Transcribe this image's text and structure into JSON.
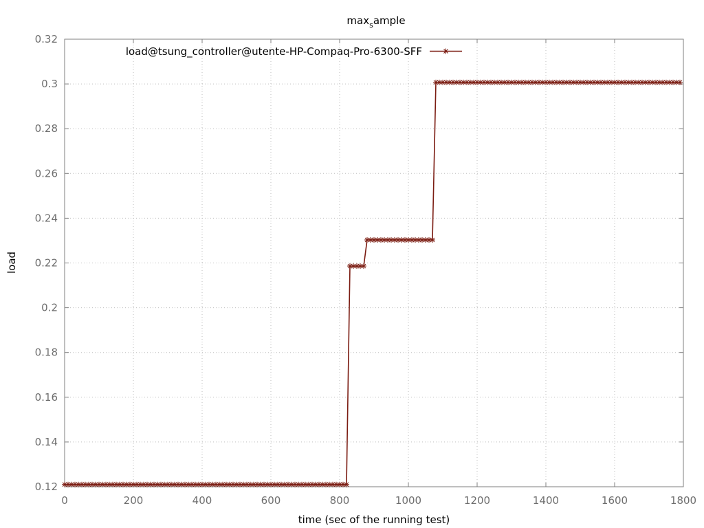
{
  "chart_data": {
    "type": "line",
    "title": "max",
    "title_subscript": "s",
    "title_rest": "ample",
    "xlabel": "time (sec of the running test)",
    "ylabel": "load",
    "xlim": [
      0,
      1800
    ],
    "ylim": [
      0.12,
      0.32
    ],
    "xticks": [
      0,
      200,
      400,
      600,
      800,
      1000,
      1200,
      1400,
      1600,
      1800
    ],
    "yticks": [
      0.12,
      0.14,
      0.16,
      0.18,
      0.2,
      0.22,
      0.24,
      0.26,
      0.28,
      0.3,
      0.32
    ],
    "ytick_labels": [
      "0.12",
      "0.14",
      "0.16",
      "0.18",
      "0.2",
      "0.22",
      "0.24",
      "0.26",
      "0.28",
      "0.3",
      "0.32"
    ],
    "grid": true,
    "legend_position": "top-left",
    "sample_interval": 10,
    "series": [
      {
        "name": "load@tsung_controller@utente-HP-Compaq-Pro-6300-SFF",
        "color": "#7b1c12",
        "marker": "plus",
        "segments": [
          {
            "x_start": 0,
            "x_end": 820,
            "y": 0.121
          },
          {
            "x_start": 830,
            "x_end": 870,
            "y": 0.2186
          },
          {
            "x_start": 880,
            "x_end": 1070,
            "y": 0.2303
          },
          {
            "x_start": 1080,
            "x_end": 1790,
            "y": 0.3007
          }
        ]
      }
    ]
  }
}
